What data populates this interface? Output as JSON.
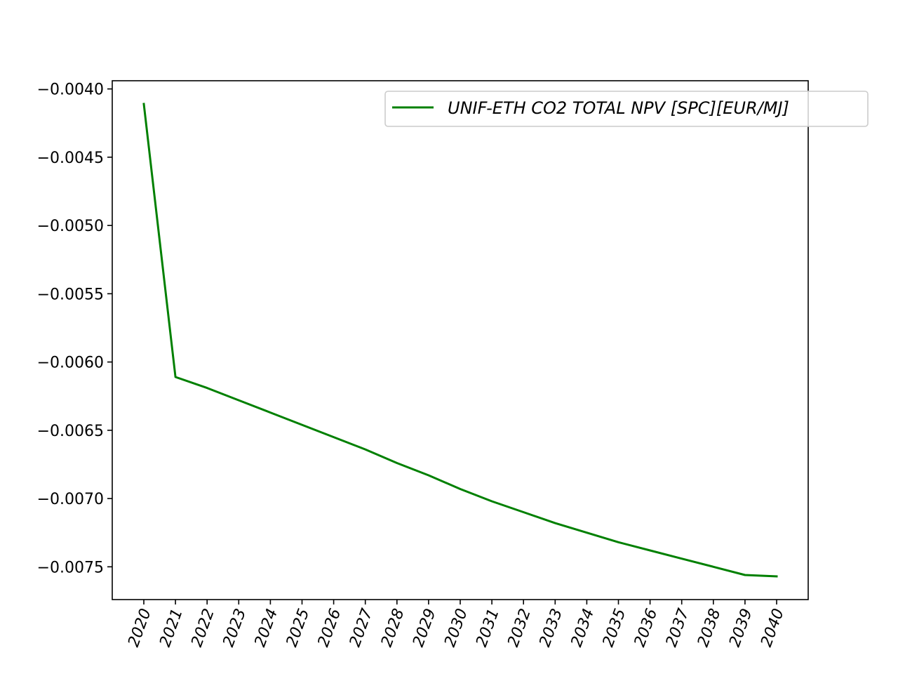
{
  "chart_data": {
    "type": "line",
    "title": "",
    "xlabel": "",
    "ylabel": "",
    "categories": [
      "2020",
      "2021",
      "2022",
      "2023",
      "2024",
      "2025",
      "2026",
      "2027",
      "2028",
      "2029",
      "2030",
      "2031",
      "2032",
      "2033",
      "2034",
      "2035",
      "2036",
      "2037",
      "2038",
      "2039",
      "2040"
    ],
    "series": [
      {
        "name": "UNIF-ETH CO2 TOTAL NPV [SPC][EUR/MJ]",
        "color": "#008000",
        "values": [
          -0.00411,
          -0.00611,
          -0.00619,
          -0.00628,
          -0.00637,
          -0.00646,
          -0.00655,
          -0.00664,
          -0.00674,
          -0.00683,
          -0.00693,
          -0.00702,
          -0.0071,
          -0.00718,
          -0.00725,
          -0.00732,
          -0.00738,
          -0.00744,
          -0.0075,
          -0.00756,
          -0.00757
        ]
      }
    ],
    "yticks": [
      -0.004,
      -0.0045,
      -0.005,
      -0.0055,
      -0.006,
      -0.0065,
      -0.007,
      -0.0075
    ],
    "ytick_labels": [
      "−0.0040",
      "−0.0045",
      "−0.0050",
      "−0.0055",
      "−0.0060",
      "−0.0065",
      "−0.0070",
      "−0.0075"
    ],
    "ylim": [
      -0.00774,
      -0.00394
    ],
    "xtick_rotation_deg": 70,
    "grid": false,
    "legend_position": "top-right"
  }
}
